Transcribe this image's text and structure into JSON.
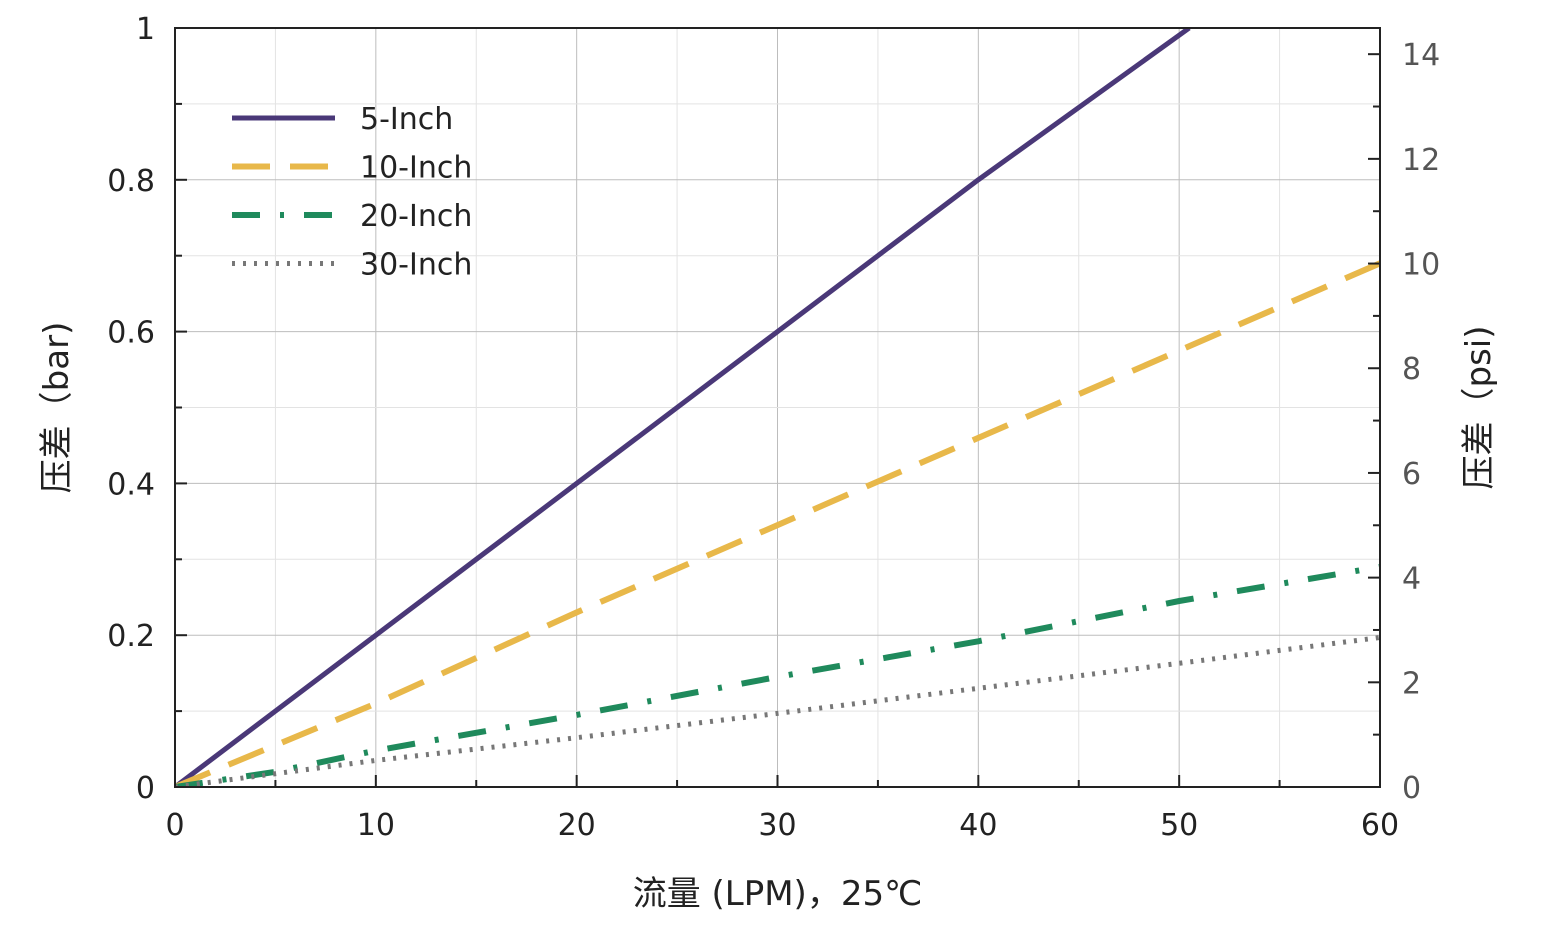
{
  "chart_data": {
    "type": "line",
    "xlabel": "流量 (LPM)，25℃",
    "ylabel": "压差（bar)",
    "ylabel_right": "压差（psi)",
    "xlim": [
      0,
      60
    ],
    "ylim": [
      0,
      1
    ],
    "ylim_right": [
      0,
      14.5
    ],
    "x_ticks": [
      0,
      10,
      20,
      30,
      40,
      50,
      60
    ],
    "x_tick_labels": [
      "0",
      "10",
      "20",
      "30",
      "40",
      "50",
      "60"
    ],
    "y_ticks": [
      0,
      0.2,
      0.4,
      0.6,
      0.8,
      1
    ],
    "y_tick_labels": [
      "0",
      "0.2",
      "0.4",
      "0.6",
      "0.8",
      "1"
    ],
    "y_right_ticks": [
      0,
      2,
      4,
      6,
      8,
      10,
      12,
      14
    ],
    "y_right_tick_labels": [
      "0",
      "2",
      "4",
      "6",
      "8",
      "10",
      "12",
      "14"
    ],
    "grid": true,
    "legend_position": "top-left",
    "series": [
      {
        "name": "5-Inch",
        "color": "#4a3878",
        "style": "solid",
        "x": [
          0,
          10,
          20,
          30,
          40,
          50.5
        ],
        "y": [
          0,
          0.2,
          0.4,
          0.6,
          0.8,
          1.0
        ]
      },
      {
        "name": "10-Inch",
        "color": "#e8b84a",
        "style": "dashed",
        "x": [
          0,
          10,
          20,
          30,
          40,
          50,
          60
        ],
        "y": [
          0,
          0.11,
          0.23,
          0.345,
          0.46,
          0.575,
          0.69
        ]
      },
      {
        "name": "20-Inch",
        "color": "#1f8a5c",
        "style": "dashdot",
        "x": [
          0,
          5,
          10,
          20,
          30,
          40,
          50,
          60
        ],
        "y": [
          0,
          0.02,
          0.048,
          0.095,
          0.145,
          0.192,
          0.245,
          0.29
        ]
      },
      {
        "name": "30-Inch",
        "color": "#777777",
        "style": "dotted",
        "x": [
          0,
          10,
          20,
          30,
          40,
          50,
          60
        ],
        "y": [
          0,
          0.035,
          0.065,
          0.097,
          0.13,
          0.163,
          0.197
        ]
      }
    ]
  }
}
